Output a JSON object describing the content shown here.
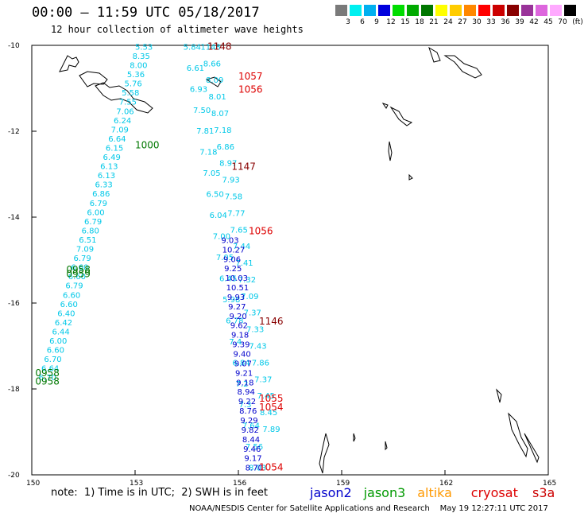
{
  "header": {
    "title": "00:00 – 11:59 UTC 05/18/2017",
    "subtitle": "12 hour collection of altimeter wave heights"
  },
  "scale": {
    "unit": "(ft)",
    "bins": [
      {
        "label": "3",
        "color": "#7a7a7a"
      },
      {
        "label": "6",
        "color": "#00f0f0"
      },
      {
        "label": "9",
        "color": "#00b0f0"
      },
      {
        "label": "12",
        "color": "#0000dd"
      },
      {
        "label": "15",
        "color": "#00dd00"
      },
      {
        "label": "18",
        "color": "#00aa00"
      },
      {
        "label": "21",
        "color": "#007700"
      },
      {
        "label": "24",
        "color": "#ffff00"
      },
      {
        "label": "27",
        "color": "#ffcc00"
      },
      {
        "label": "30",
        "color": "#ff8800"
      },
      {
        "label": "33",
        "color": "#ff0000"
      },
      {
        "label": "36",
        "color": "#cc0000"
      },
      {
        "label": "39",
        "color": "#880000"
      },
      {
        "label": "42",
        "color": "#993399"
      },
      {
        "label": "45",
        "color": "#dd66dd"
      },
      {
        "label": "70",
        "color": "#ffaaff"
      },
      {
        "label": "",
        "color": "#000000"
      }
    ]
  },
  "map": {
    "lon_range": [
      150,
      165
    ],
    "lat_range": [
      -20,
      -10
    ],
    "x_ticks": [
      "150",
      "153",
      "156",
      "159",
      "162",
      "165"
    ],
    "y_ticks": [
      "-10",
      "-12",
      "-14",
      "-16",
      "-18",
      "-20"
    ],
    "tracks": [
      {
        "color": "#00c8e8",
        "start": [
          153.0,
          -10.1
        ],
        "end": [
          150.2,
          -17.8
        ],
        "values": [
          "5.53",
          "8.35",
          "8.00",
          "5.36",
          "5.76",
          "5.58",
          "7.55",
          "7.06",
          "6.24",
          "7.09",
          "6.64",
          "6.15",
          "6.49",
          "6.13",
          "6.13",
          "6.33",
          "6.86",
          "6.79",
          "6.00",
          "6.79",
          "6.80",
          "6.51",
          "7.09",
          "6.79",
          "6.60",
          "6.60",
          "6.79",
          "6.60",
          "6.60",
          "6.40",
          "6.42",
          "6.44",
          "6.00",
          "6.60",
          "6.70",
          "6.64",
          "6.70"
        ]
      },
      {
        "color": "#00c8e8",
        "start": [
          154.4,
          -10.1
        ],
        "end": [
          156.3,
          -19.9
        ],
        "values": [
          "5.84",
          "6.61",
          "6.93",
          "7.50",
          "7.81",
          "7.18",
          "7.05",
          "6.50",
          "6.04",
          "7.00",
          "7.05",
          "6.45",
          "5.98",
          "6.78",
          "7.4",
          "6.84",
          "7.2",
          "7.3",
          "7.64",
          "7.56",
          "8.03"
        ]
      },
      {
        "color": "#00c8e8",
        "start": [
          154.9,
          -10.1
        ],
        "end": [
          156.7,
          -19.0
        ],
        "values": [
          "1148",
          "8.66",
          "8.09",
          "8.01",
          "8.07",
          "7.18",
          "6.86",
          "8.97",
          "7.93",
          "7.58",
          "7.77",
          "7.65",
          "7.44",
          "7.41",
          "7.32",
          "7.09",
          "7.37",
          "7.33",
          "7.43",
          "7.86",
          "7.37",
          "7.45",
          "8.45",
          "7.89"
        ]
      },
      {
        "color": "#0000cc",
        "start": [
          155.5,
          -14.6
        ],
        "end": [
          156.2,
          -19.9
        ],
        "values": [
          "9.03",
          "10.27",
          "9.06",
          "9.25",
          "10.03",
          "10.51",
          "9.93",
          "9.27",
          "9.20",
          "9.62",
          "9.18",
          "9.39",
          "9.40",
          "9.07",
          "9.21",
          "9.18",
          "8.94",
          "9.22",
          "8.76",
          "9.29",
          "9.82",
          "8.44",
          "9.46",
          "9.17",
          "8.70"
        ]
      }
    ],
    "time_labels": [
      {
        "text": "1148",
        "color": "#880000",
        "lon": 155.1,
        "lat": -10.1
      },
      {
        "text": "1057",
        "color": "#dd0000",
        "lon": 156.0,
        "lat": -10.8
      },
      {
        "text": "1056",
        "color": "#dd0000",
        "lon": 156.0,
        "lat": -11.1
      },
      {
        "text": "1000",
        "color": "#007700",
        "lon": 153.0,
        "lat": -12.4
      },
      {
        "text": "1147",
        "color": "#880000",
        "lon": 155.8,
        "lat": -12.9
      },
      {
        "text": "1056",
        "color": "#dd0000",
        "lon": 156.3,
        "lat": -14.4
      },
      {
        "text": "0958",
        "color": "#007700",
        "lon": 151.0,
        "lat": -15.3
      },
      {
        "text": "0959",
        "color": "#007700",
        "lon": 151.0,
        "lat": -15.4
      },
      {
        "text": "1146",
        "color": "#880000",
        "lon": 156.6,
        "lat": -16.5
      },
      {
        "text": "0958",
        "color": "#007700",
        "lon": 150.1,
        "lat": -17.7
      },
      {
        "text": "0958",
        "color": "#007700",
        "lon": 150.1,
        "lat": -17.9
      },
      {
        "text": "1055",
        "color": "#dd0000",
        "lon": 156.6,
        "lat": -18.3
      },
      {
        "text": "1054",
        "color": "#dd0000",
        "lon": 156.6,
        "lat": -18.5
      },
      {
        "text": "1054",
        "color": "#dd0000",
        "lon": 156.6,
        "lat": -19.9
      }
    ]
  },
  "footer": {
    "note": "note:  1) Time is in UTC;  2) SWH is in feet",
    "satellites": [
      {
        "label": "jason2",
        "color": "#0000cc"
      },
      {
        "label": "jason3",
        "color": "#009900"
      },
      {
        "label": "altika",
        "color": "#ff9900"
      },
      {
        "label": "cryosat",
        "color": "#dd0000"
      },
      {
        "label": "s3a",
        "color": "#cc0000"
      }
    ],
    "credit": "NOAA/NESDIS Center for Satellite Applications and Research    May 19 12:27:11 UTC 2017"
  }
}
